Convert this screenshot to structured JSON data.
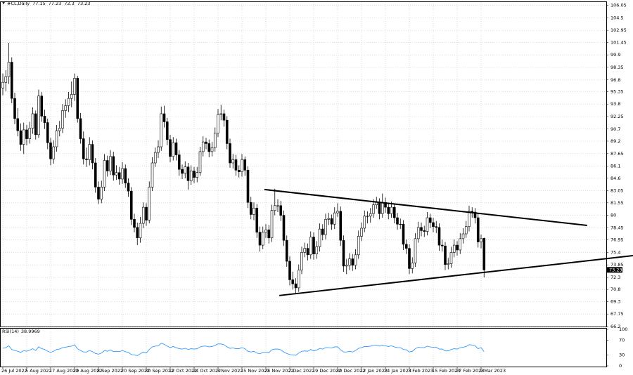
{
  "chart_data": {
    "type": "candlestick",
    "symbol": "#CL,Daily",
    "ylim": [
      66.2,
      106.45
    ],
    "yticks": [
      106.05,
      104.5,
      102.95,
      101.45,
      99.9,
      98.35,
      96.8,
      95.35,
      93.8,
      92.25,
      90.7,
      89.2,
      87.65,
      86.1,
      84.6,
      83.05,
      81.55,
      80,
      78.45,
      76.95,
      75.4,
      73.85,
      72.3,
      70.8,
      69.3,
      67.75,
      66.2
    ],
    "grid": true,
    "bull_color": "#ffffff",
    "bear_color": "#000000",
    "categories": [
      "26 Jul 2022",
      null,
      null,
      null,
      null,
      null,
      null,
      null,
      "5 Aug 2022",
      null,
      null,
      null,
      null,
      null,
      null,
      null,
      "17 Aug 2022",
      null,
      null,
      null,
      null,
      null,
      null,
      null,
      "29 Aug 2022",
      null,
      null,
      null,
      null,
      null,
      null,
      null,
      "8 Sep 2022",
      null,
      null,
      null,
      null,
      null,
      null,
      null,
      "20 Sep 2022",
      null,
      null,
      null,
      null,
      null,
      null,
      null,
      "30 Sep 2022",
      null,
      null,
      null,
      null,
      null,
      null,
      null,
      "12 Oct 2022",
      null,
      null,
      null,
      null,
      null,
      null,
      null,
      "24 Oct 2022",
      null,
      null,
      null,
      null,
      null,
      null,
      null,
      "3 Nov 2022",
      null,
      null,
      null,
      null,
      null,
      null,
      null,
      "15 Nov 2022",
      null,
      null,
      null,
      null,
      null,
      null,
      null,
      "25 Nov 2022",
      null,
      null,
      null,
      null,
      null,
      null,
      null,
      "7 Dec 2022",
      null,
      null,
      null,
      null,
      null,
      null,
      null,
      "19 Dec 2022",
      null,
      null,
      null,
      null,
      null,
      null,
      null,
      "30 Dec 2022",
      null,
      null,
      null,
      null,
      null,
      null,
      null,
      "12 Jan 2023",
      null,
      null,
      null,
      null,
      null,
      null,
      null,
      "24 Jan 2023",
      null,
      null,
      null,
      null,
      null,
      null,
      null,
      "3 Feb 2023",
      null,
      null,
      null,
      null,
      null,
      null,
      null,
      "15 Feb 2023",
      null,
      null,
      null,
      null,
      null,
      null,
      null,
      "27 Feb 2023",
      null,
      null,
      null,
      null,
      null,
      null,
      null,
      "9 Mar 2023",
      null
    ],
    "candles": [
      [
        95.8,
        97.6,
        94.9,
        96.5
      ],
      [
        96.5,
        98.0,
        95.4,
        97.2
      ],
      [
        97.2,
        101.4,
        96.3,
        99.0
      ],
      [
        99.0,
        99.6,
        93.9,
        94.5
      ],
      [
        94.5,
        95.2,
        91.3,
        92.0
      ],
      [
        92.0,
        93.3,
        89.8,
        90.5
      ],
      [
        90.5,
        91.4,
        88.0,
        88.8
      ],
      [
        88.8,
        91.5,
        87.6,
        90.6
      ],
      [
        90.6,
        91.2,
        88.7,
        89.5
      ],
      [
        89.5,
        91.6,
        88.9,
        90.8
      ],
      [
        90.8,
        93.4,
        90.1,
        92.6
      ],
      [
        92.6,
        93.0,
        89.4,
        90.0
      ],
      [
        90.0,
        95.6,
        89.6,
        94.8
      ],
      [
        94.8,
        95.3,
        91.6,
        92.3
      ],
      [
        92.3,
        93.1,
        90.7,
        91.5
      ],
      [
        91.5,
        92.0,
        88.2,
        89.0
      ],
      [
        89.0,
        89.6,
        86.2,
        87.0
      ],
      [
        87.0,
        89.3,
        86.4,
        88.5
      ],
      [
        88.5,
        91.2,
        87.9,
        90.5
      ],
      [
        90.5,
        91.7,
        89.8,
        90.8
      ],
      [
        90.8,
        93.8,
        90.2,
        93.0
      ],
      [
        93.0,
        94.4,
        92.1,
        93.6
      ],
      [
        93.6,
        95.3,
        92.8,
        94.5
      ],
      [
        94.5,
        96.6,
        93.4,
        95.0
      ],
      [
        95.0,
        97.6,
        94.2,
        97.0
      ],
      [
        97.0,
        97.3,
        91.5,
        92.0
      ],
      [
        92.0,
        92.7,
        88.9,
        89.5
      ],
      [
        89.5,
        90.4,
        86.3,
        87.0
      ],
      [
        87.0,
        88.4,
        86.0,
        86.9
      ],
      [
        86.9,
        89.7,
        86.2,
        88.8
      ],
      [
        88.8,
        89.3,
        85.7,
        86.5
      ],
      [
        86.5,
        87.1,
        82.8,
        83.5
      ],
      [
        83.5,
        84.2,
        81.4,
        82.0
      ],
      [
        82.0,
        84.3,
        81.5,
        83.5
      ],
      [
        83.5,
        87.6,
        83.0,
        86.8
      ],
      [
        86.8,
        87.4,
        84.8,
        85.5
      ],
      [
        85.5,
        88.1,
        85.0,
        87.3
      ],
      [
        87.3,
        87.9,
        84.3,
        85.0
      ],
      [
        85.0,
        86.2,
        84.4,
        85.3
      ],
      [
        85.3,
        86.0,
        83.8,
        84.5
      ],
      [
        84.5,
        86.6,
        83.9,
        85.8
      ],
      [
        85.8,
        86.3,
        83.4,
        84.0
      ],
      [
        84.0,
        84.6,
        82.3,
        83.0
      ],
      [
        83.0,
        83.5,
        78.8,
        79.5
      ],
      [
        79.5,
        80.2,
        77.9,
        78.5
      ],
      [
        78.5,
        79.1,
        76.3,
        77.2
      ],
      [
        77.2,
        79.8,
        76.6,
        79.0
      ],
      [
        79.0,
        81.6,
        78.4,
        81.0
      ],
      [
        81.0,
        81.5,
        78.7,
        79.4
      ],
      [
        79.4,
        84.2,
        79.0,
        83.5
      ],
      [
        83.5,
        87.2,
        83.0,
        86.5
      ],
      [
        86.5,
        88.4,
        86.0,
        87.8
      ],
      [
        87.8,
        89.3,
        87.1,
        88.5
      ],
      [
        88.5,
        93.5,
        88.0,
        92.6
      ],
      [
        92.6,
        93.6,
        90.9,
        91.6
      ],
      [
        91.6,
        92.1,
        88.7,
        89.4
      ],
      [
        89.4,
        90.0,
        86.6,
        87.3
      ],
      [
        87.3,
        89.7,
        86.8,
        89.0
      ],
      [
        89.0,
        89.5,
        86.8,
        87.5
      ],
      [
        87.5,
        88.1,
        84.9,
        85.7
      ],
      [
        85.7,
        86.3,
        84.5,
        85.2
      ],
      [
        85.2,
        86.7,
        84.6,
        86.0
      ],
      [
        86.0,
        86.5,
        83.2,
        84.3
      ],
      [
        84.3,
        86.2,
        83.8,
        85.5
      ],
      [
        85.5,
        86.0,
        84.0,
        84.7
      ],
      [
        84.7,
        86.0,
        84.1,
        85.3
      ],
      [
        85.3,
        88.5,
        84.9,
        87.9
      ],
      [
        87.9,
        89.8,
        87.3,
        89.1
      ],
      [
        89.1,
        89.6,
        88.2,
        88.9
      ],
      [
        88.9,
        89.4,
        87.2,
        87.9
      ],
      [
        87.9,
        89.1,
        87.3,
        88.4
      ],
      [
        88.4,
        90.9,
        87.9,
        90.2
      ],
      [
        90.2,
        93.2,
        89.7,
        92.5
      ],
      [
        92.5,
        93.7,
        91.8,
        92.6
      ],
      [
        92.6,
        93.1,
        91.0,
        91.8
      ],
      [
        91.8,
        92.3,
        88.2,
        88.9
      ],
      [
        88.9,
        89.5,
        85.9,
        86.5
      ],
      [
        86.5,
        87.6,
        85.8,
        86.9
      ],
      [
        86.9,
        87.5,
        84.9,
        85.6
      ],
      [
        85.6,
        86.2,
        84.7,
        85.4
      ],
      [
        85.4,
        87.6,
        84.8,
        86.9
      ],
      [
        86.9,
        87.3,
        84.9,
        85.6
      ],
      [
        85.6,
        86.1,
        80.9,
        81.6
      ],
      [
        81.6,
        82.3,
        79.5,
        80.1
      ],
      [
        80.1,
        81.6,
        79.4,
        80.9
      ],
      [
        80.9,
        81.4,
        77.2,
        77.9
      ],
      [
        77.9,
        78.6,
        75.5,
        76.3
      ],
      [
        76.3,
        78.6,
        75.8,
        77.9
      ],
      [
        77.9,
        78.9,
        77.2,
        78.2
      ],
      [
        78.2,
        78.8,
        76.5,
        77.2
      ],
      [
        77.2,
        81.3,
        76.7,
        80.6
      ],
      [
        80.6,
        83.3,
        80.0,
        81.2
      ],
      [
        81.2,
        82.0,
        80.4,
        81.2
      ],
      [
        81.2,
        81.8,
        79.3,
        80.0
      ],
      [
        80.0,
        80.6,
        76.2,
        76.9
      ],
      [
        76.9,
        77.5,
        73.6,
        74.3
      ],
      [
        74.3,
        74.9,
        71.3,
        72.0
      ],
      [
        72.0,
        73.0,
        70.8,
        71.5
      ],
      [
        71.5,
        72.2,
        70.3,
        71.0
      ],
      [
        71.0,
        73.9,
        70.5,
        73.2
      ],
      [
        73.2,
        76.1,
        72.7,
        75.4
      ],
      [
        75.4,
        76.6,
        74.8,
        75.9
      ],
      [
        75.9,
        76.5,
        74.4,
        75.1
      ],
      [
        75.1,
        78.0,
        74.6,
        77.3
      ],
      [
        77.3,
        77.9,
        74.5,
        75.2
      ],
      [
        75.2,
        76.8,
        74.6,
        76.1
      ],
      [
        76.1,
        79.0,
        75.5,
        78.3
      ],
      [
        78.3,
        78.9,
        76.9,
        77.6
      ],
      [
        77.6,
        80.2,
        77.0,
        79.5
      ],
      [
        79.5,
        80.3,
        78.8,
        79.6
      ],
      [
        79.6,
        80.1,
        78.2,
        78.9
      ],
      [
        78.9,
        81.0,
        78.3,
        80.3
      ],
      [
        80.3,
        81.5,
        79.8,
        80.5
      ],
      [
        80.5,
        81.1,
        76.2,
        76.9
      ],
      [
        76.9,
        77.5,
        73.0,
        73.7
      ],
      [
        73.7,
        74.6,
        72.7,
        73.8
      ],
      [
        73.8,
        75.3,
        73.2,
        74.6
      ],
      [
        74.6,
        75.2,
        73.1,
        73.8
      ],
      [
        73.8,
        75.8,
        73.3,
        75.1
      ],
      [
        75.1,
        78.1,
        74.6,
        77.4
      ],
      [
        77.4,
        79.1,
        76.8,
        78.4
      ],
      [
        78.4,
        80.6,
        77.9,
        79.9
      ],
      [
        79.9,
        80.5,
        79.0,
        79.9
      ],
      [
        79.9,
        80.9,
        79.1,
        80.2
      ],
      [
        80.2,
        82.0,
        79.7,
        81.3
      ],
      [
        81.3,
        82.3,
        80.8,
        81.6
      ],
      [
        81.6,
        82.1,
        79.5,
        80.2
      ],
      [
        80.2,
        82.7,
        79.7,
        81.6
      ],
      [
        81.6,
        82.2,
        80.3,
        81.0
      ],
      [
        81.0,
        81.5,
        79.5,
        80.2
      ],
      [
        80.2,
        81.7,
        79.7,
        81.0
      ],
      [
        81.0,
        81.4,
        79.0,
        79.7
      ],
      [
        79.7,
        80.3,
        78.2,
        78.9
      ],
      [
        78.9,
        79.6,
        78.3,
        78.9
      ],
      [
        78.9,
        79.4,
        75.7,
        76.4
      ],
      [
        76.4,
        77.0,
        75.2,
        75.9
      ],
      [
        75.9,
        76.4,
        72.7,
        73.4
      ],
      [
        73.4,
        74.8,
        72.8,
        74.1
      ],
      [
        74.1,
        77.8,
        73.6,
        77.1
      ],
      [
        77.1,
        79.2,
        76.6,
        78.5
      ],
      [
        78.5,
        79.1,
        77.4,
        78.1
      ],
      [
        78.1,
        78.7,
        77.3,
        78.0
      ],
      [
        78.0,
        80.4,
        77.5,
        79.7
      ],
      [
        79.7,
        80.2,
        78.4,
        79.1
      ],
      [
        79.1,
        79.7,
        77.9,
        78.6
      ],
      [
        78.6,
        79.3,
        77.8,
        78.5
      ],
      [
        78.5,
        79.0,
        75.6,
        76.3
      ],
      [
        76.3,
        77.0,
        75.5,
        76.2
      ],
      [
        76.2,
        76.7,
        73.2,
        73.9
      ],
      [
        73.9,
        74.7,
        73.3,
        74.0
      ],
      [
        74.0,
        76.1,
        73.5,
        75.4
      ],
      [
        75.4,
        77.0,
        74.8,
        76.3
      ],
      [
        76.3,
        76.8,
        75.0,
        75.7
      ],
      [
        75.7,
        77.8,
        75.2,
        77.1
      ],
      [
        77.1,
        78.4,
        76.5,
        77.7
      ],
      [
        77.7,
        79.3,
        77.2,
        78.6
      ],
      [
        78.6,
        81.2,
        78.0,
        80.5
      ],
      [
        80.5,
        81.0,
        79.7,
        80.4
      ],
      [
        80.4,
        80.9,
        79.0,
        79.7
      ],
      [
        79.7,
        80.2,
        76.0,
        76.7
      ],
      [
        76.7,
        77.6,
        75.9,
        77.1
      ],
      [
        77.15,
        77.23,
        72.3,
        73.23
      ]
    ],
    "trendlines": [
      {
        "start": [
          87.5,
          83.2
        ],
        "end": [
          195.5,
          78.75
        ]
      },
      {
        "start": [
          92.5,
          70.05
        ],
        "end": [
          210.8,
          75.0
        ]
      }
    ],
    "rsi": {
      "name": "RSI(14)",
      "color": "#1e90ff",
      "ylim": [
        0,
        100
      ],
      "yticks": [
        100,
        70,
        30,
        0
      ],
      "values": [
        48,
        50,
        55,
        45,
        42,
        40,
        37,
        42,
        40,
        43,
        47,
        42,
        52,
        47,
        45,
        40,
        37,
        40,
        45,
        46,
        50,
        51,
        53,
        54,
        58,
        47,
        42,
        38,
        38,
        42,
        39,
        34,
        32,
        35,
        42,
        40,
        44,
        39,
        40,
        39,
        42,
        39,
        37,
        31,
        30,
        28,
        33,
        38,
        35,
        45,
        52,
        54,
        55,
        62,
        59,
        54,
        50,
        53,
        50,
        47,
        46,
        48,
        45,
        47,
        46,
        47,
        52,
        54,
        54,
        52,
        53,
        56,
        60,
        60,
        58,
        52,
        48,
        49,
        47,
        47,
        50,
        47,
        40,
        38,
        40,
        35,
        33,
        37,
        38,
        36,
        44,
        46,
        46,
        44,
        38,
        34,
        31,
        30,
        29,
        35,
        40,
        41,
        40,
        45,
        41,
        43,
        48,
        46,
        50,
        50,
        49,
        52,
        52,
        44,
        38,
        38,
        40,
        38,
        42,
        48,
        50,
        53,
        53,
        54,
        56,
        57,
        54,
        57,
        55,
        53,
        55,
        52,
        50,
        50,
        45,
        44,
        38,
        40,
        47,
        51,
        50,
        50,
        54,
        52,
        51,
        51,
        46,
        46,
        41,
        41,
        45,
        47,
        46,
        50,
        51,
        53,
        58,
        57,
        55,
        47,
        50,
        38.9969
      ]
    }
  }
}
